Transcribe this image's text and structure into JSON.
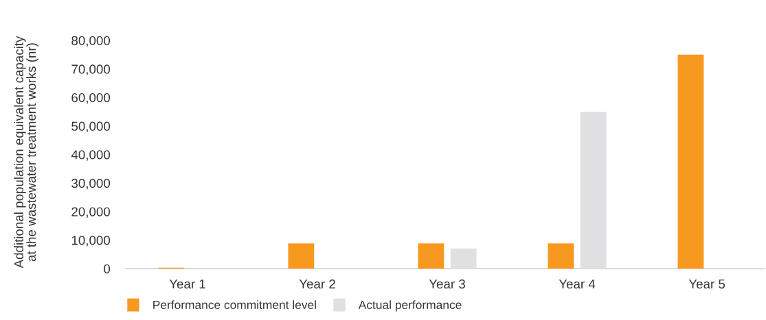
{
  "chart_data": {
    "type": "bar",
    "ylabel": "Additional population equivalent capacity\nat the wastewater treatment works (nr)",
    "categories": [
      "Year 1",
      "Year 2",
      "Year 3",
      "Year 4",
      "Year 5"
    ],
    "series": [
      {
        "name": "Performance commitment level",
        "color": "#f7991f",
        "values": [
          300,
          8800,
          8800,
          8800,
          75000
        ]
      },
      {
        "name": "Actual performance",
        "color": "#e0e0e2",
        "values": [
          null,
          null,
          7000,
          55000,
          null
        ]
      }
    ],
    "ylim": [
      0,
      80000
    ],
    "yticks": [
      {
        "value": 0,
        "label": "0"
      },
      {
        "value": 10000,
        "label": "10,000"
      },
      {
        "value": 20000,
        "label": "20,000"
      },
      {
        "value": 30000,
        "label": "30,000"
      },
      {
        "value": 40000,
        "label": "40,000"
      },
      {
        "value": 50000,
        "label": "50,000"
      },
      {
        "value": 60000,
        "label": "60,000"
      },
      {
        "value": 70000,
        "label": "70,000"
      },
      {
        "value": 80000,
        "label": "80,000"
      }
    ],
    "grid": false,
    "legend": "bottom left"
  }
}
